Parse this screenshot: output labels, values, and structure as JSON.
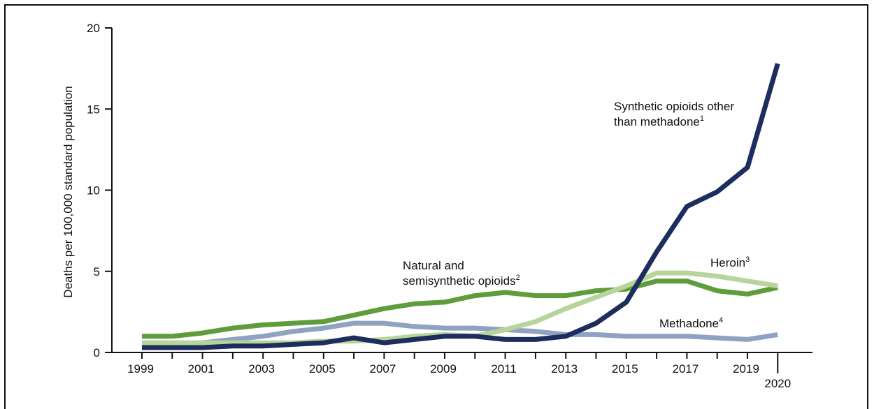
{
  "chart_data": {
    "type": "line",
    "title": "",
    "xlabel": "",
    "ylabel": "Deaths per 100,000 standard population",
    "ylim": [
      0,
      20
    ],
    "yticks": [
      0,
      5,
      10,
      15,
      20
    ],
    "xticks": [
      "1999",
      "2001",
      "2003",
      "2005",
      "2007",
      "2009",
      "2011",
      "2013",
      "2015",
      "2017",
      "2019",
      "2020"
    ],
    "x": [
      1999,
      2000,
      2001,
      2002,
      2003,
      2004,
      2005,
      2006,
      2007,
      2008,
      2009,
      2010,
      2011,
      2012,
      2013,
      2014,
      2015,
      2016,
      2017,
      2018,
      2019,
      2020
    ],
    "grid": false,
    "legend": "none",
    "series": [
      {
        "key": "synthetic",
        "color": "#1c2d5e",
        "label_lines": [
          "Synthetic opioids other",
          "than methadone"
        ],
        "label_sup": "1",
        "values": [
          0.3,
          0.3,
          0.3,
          0.4,
          0.4,
          0.5,
          0.6,
          0.9,
          0.6,
          0.8,
          1.0,
          1.0,
          0.8,
          0.8,
          1.0,
          1.8,
          3.1,
          6.2,
          9.0,
          9.9,
          11.4,
          17.8
        ]
      },
      {
        "key": "natural",
        "color": "#5f9c3c",
        "label_lines": [
          "Natural and",
          "semisynthetic opioids"
        ],
        "label_sup": "2",
        "values": [
          1.0,
          1.0,
          1.2,
          1.5,
          1.7,
          1.8,
          1.9,
          2.3,
          2.7,
          3.0,
          3.1,
          3.5,
          3.7,
          3.5,
          3.5,
          3.8,
          3.9,
          4.4,
          4.4,
          3.8,
          3.6,
          4.0
        ]
      },
      {
        "key": "heroin",
        "color": "#b7d59b",
        "label_lines": [
          "Heroin"
        ],
        "label_sup": "3",
        "values": [
          0.6,
          0.6,
          0.6,
          0.6,
          0.6,
          0.6,
          0.7,
          0.7,
          0.8,
          1.0,
          1.1,
          1.0,
          1.4,
          1.9,
          2.7,
          3.4,
          4.1,
          4.9,
          4.9,
          4.7,
          4.4,
          4.1
        ]
      },
      {
        "key": "methadone",
        "color": "#8fa2c2",
        "label_lines": [
          "Methadone"
        ],
        "label_sup": "4",
        "values": [
          0.3,
          0.4,
          0.6,
          0.8,
          1.0,
          1.3,
          1.5,
          1.8,
          1.8,
          1.6,
          1.5,
          1.5,
          1.4,
          1.3,
          1.1,
          1.1,
          1.0,
          1.0,
          1.0,
          0.9,
          0.8,
          1.1
        ]
      }
    ]
  }
}
